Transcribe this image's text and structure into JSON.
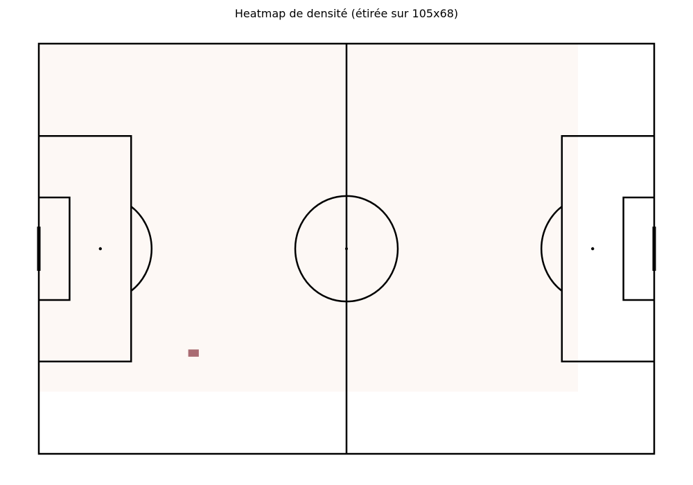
{
  "chart_data": {
    "type": "heatmap",
    "title": "Heatmap de densité (étirée sur 105x68)",
    "xlabel": "",
    "ylabel": "",
    "xlim": [
      0,
      105
    ],
    "ylim": [
      0,
      68
    ],
    "grid": false,
    "colormap": "reds",
    "background_cell_color": "#fdf8f5",
    "hot_cell_color": "#a96b72",
    "heat_extent": {
      "x": [
        0,
        92
      ],
      "y": [
        10.3,
        68
      ]
    },
    "cells": [
      {
        "x": [
          25.5,
          27.3
        ],
        "y": [
          16.1,
          17.3
        ],
        "value": 1
      }
    ],
    "pitch": {
      "length": 105,
      "width": 68,
      "line_color": "#000000",
      "penalty_area": {
        "depth": 15.75,
        "width": 37.4
      },
      "goal_area": {
        "depth": 5.25,
        "width": 17
      },
      "penalty_spot": 10.5,
      "center_circle_radius": 8.75,
      "goal_width": 7.32
    }
  }
}
